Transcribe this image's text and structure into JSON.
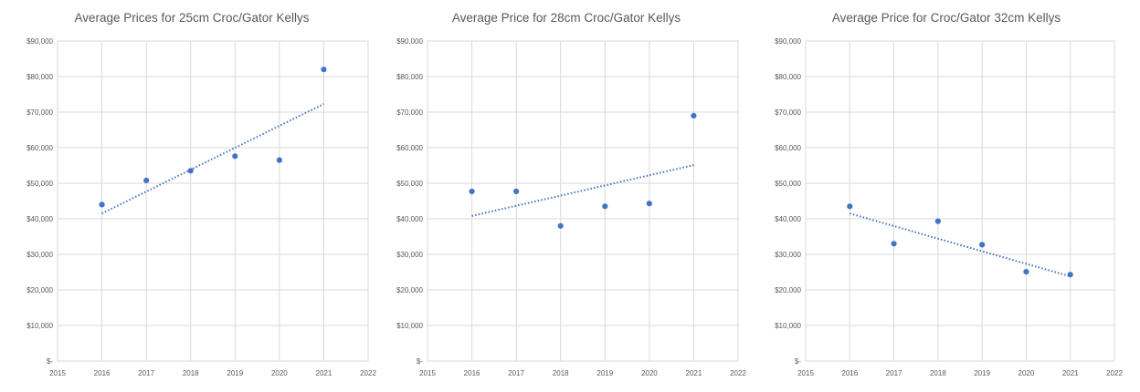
{
  "chart_data": [
    {
      "type": "scatter",
      "title": "Average Prices for 25cm Croc/Gator Kellys",
      "x": [
        2016,
        2017,
        2018,
        2019,
        2020,
        2021
      ],
      "y": [
        44000,
        50800,
        53500,
        57600,
        56500,
        82000
      ],
      "trendline": {
        "type": "linear",
        "style": "dotted",
        "from": [
          2016,
          41500
        ],
        "to": [
          2021,
          72300
        ]
      },
      "xlim": [
        2015,
        2022
      ],
      "ylim": [
        0,
        90000
      ],
      "xticks": [
        "2015",
        "2016",
        "2017",
        "2018",
        "2019",
        "2020",
        "2021",
        "2022"
      ],
      "yticks": [
        "$-",
        "$10,000",
        "$20,000",
        "$30,000",
        "$40,000",
        "$50,000",
        "$60,000",
        "$70,000",
        "$80,000",
        "$90,000"
      ],
      "grid": true,
      "color": "#4472C4"
    },
    {
      "type": "scatter",
      "title": "Average Price for 28cm Croc/Gator Kellys",
      "x": [
        2016,
        2017,
        2018,
        2019,
        2020,
        2021
      ],
      "y": [
        47700,
        47700,
        38000,
        43500,
        44300,
        69000
      ],
      "trendline": {
        "type": "linear",
        "style": "dotted",
        "from": [
          2016,
          40800
        ],
        "to": [
          2021,
          55100
        ]
      },
      "xlim": [
        2015,
        2022
      ],
      "ylim": [
        0,
        90000
      ],
      "xticks": [
        "2015",
        "2016",
        "2017",
        "2018",
        "2019",
        "2020",
        "2021",
        "2022"
      ],
      "yticks": [
        "$-",
        "$10,000",
        "$20,000",
        "$30,000",
        "$40,000",
        "$50,000",
        "$60,000",
        "$70,000",
        "$80,000",
        "$90,000"
      ],
      "grid": true,
      "color": "#4472C4"
    },
    {
      "type": "scatter",
      "title": "Average Price for Croc/Gator 32cm Kellys",
      "x": [
        2016,
        2017,
        2018,
        2019,
        2020,
        2021
      ],
      "y": [
        43500,
        33000,
        39300,
        32700,
        25100,
        24300
      ],
      "trendline": {
        "type": "linear",
        "style": "dotted",
        "from": [
          2016,
          41500
        ],
        "to": [
          2021,
          23800
        ]
      },
      "xlim": [
        2015,
        2022
      ],
      "ylim": [
        0,
        90000
      ],
      "xticks": [
        "2015",
        "2016",
        "2017",
        "2018",
        "2019",
        "2020",
        "2021",
        "2022"
      ],
      "yticks": [
        "$-",
        "$10,000",
        "$20,000",
        "$30,000",
        "$40,000",
        "$50,000",
        "$60,000",
        "$70,000",
        "$80,000",
        "$90,000"
      ],
      "grid": true,
      "color": "#4472C4"
    }
  ]
}
